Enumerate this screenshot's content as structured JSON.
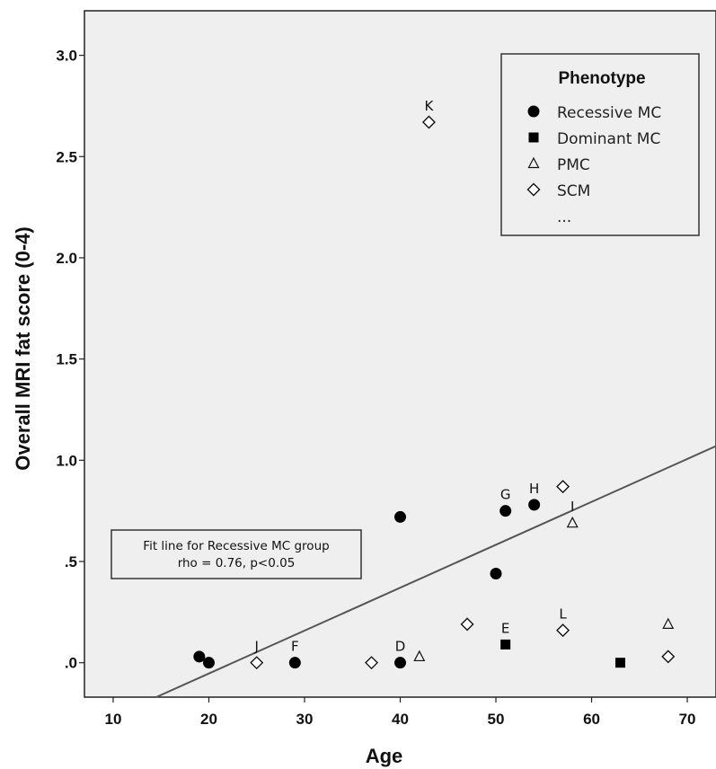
{
  "chart_data": {
    "type": "scatter",
    "xlabel": "Age",
    "ylabel": "Overall MRI fat score (0-4)",
    "xlim": [
      7,
      73
    ],
    "ylim": [
      -0.17,
      3.22
    ],
    "x_ticks": [
      10,
      20,
      30,
      40,
      50,
      60,
      70
    ],
    "y_ticks": [
      {
        "value": 0.0,
        "label": ".0"
      },
      {
        "value": 0.5,
        "label": ".5"
      },
      {
        "value": 1.0,
        "label": "1.0"
      },
      {
        "value": 1.5,
        "label": "1.5"
      },
      {
        "value": 2.0,
        "label": "2.0"
      },
      {
        "value": 2.5,
        "label": "2.5"
      },
      {
        "value": 3.0,
        "label": "3.0"
      }
    ],
    "plot_background": "#efefef",
    "series": [
      {
        "name": "Recessive MC",
        "marker": "circle",
        "points": [
          {
            "x": 19,
            "y": 0.03,
            "label": ""
          },
          {
            "x": 20,
            "y": 0.0,
            "label": ""
          },
          {
            "x": 29,
            "y": 0.0,
            "label": "F"
          },
          {
            "x": 40,
            "y": 0.72,
            "label": ""
          },
          {
            "x": 40,
            "y": 0.0,
            "label": "D"
          },
          {
            "x": 50,
            "y": 0.44,
            "label": ""
          },
          {
            "x": 51,
            "y": 0.75,
            "label": "G"
          },
          {
            "x": 54,
            "y": 0.78,
            "label": "H"
          }
        ]
      },
      {
        "name": "Dominant MC",
        "marker": "square",
        "points": [
          {
            "x": 51,
            "y": 0.09,
            "label": "E"
          },
          {
            "x": 63,
            "y": 0.0,
            "label": ""
          }
        ]
      },
      {
        "name": "PMC",
        "marker": "triangle",
        "points": [
          {
            "x": 42,
            "y": 0.03,
            "label": ""
          },
          {
            "x": 58,
            "y": 0.69,
            "label": "I"
          },
          {
            "x": 68,
            "y": 0.19,
            "label": ""
          }
        ]
      },
      {
        "name": "SCM",
        "marker": "diamond",
        "points": [
          {
            "x": 25,
            "y": 0.0,
            "label": "J"
          },
          {
            "x": 37,
            "y": 0.0,
            "label": ""
          },
          {
            "x": 43,
            "y": 2.67,
            "label": "K"
          },
          {
            "x": 47,
            "y": 0.19,
            "label": ""
          },
          {
            "x": 57,
            "y": 0.16,
            "label": "L"
          },
          {
            "x": 57,
            "y": 0.87,
            "label": ""
          },
          {
            "x": 68,
            "y": 0.03,
            "label": ""
          }
        ]
      }
    ],
    "fit_line": {
      "x": [
        14.5,
        73
      ],
      "y": [
        -0.17,
        1.07
      ]
    },
    "legend": {
      "title": "Phenotype",
      "position": "top-right",
      "entries": [
        {
          "marker": "circle",
          "label": "Recessive MC"
        },
        {
          "marker": "square",
          "label": "Dominant MC"
        },
        {
          "marker": "triangle",
          "label": "PMC"
        },
        {
          "marker": "diamond",
          "label": "SCM"
        },
        {
          "marker": "none",
          "label": "..."
        }
      ]
    },
    "annotation": {
      "lines": [
        "Fit line for Recessive MC group",
        "rho = 0.76, p<0.05"
      ]
    }
  }
}
